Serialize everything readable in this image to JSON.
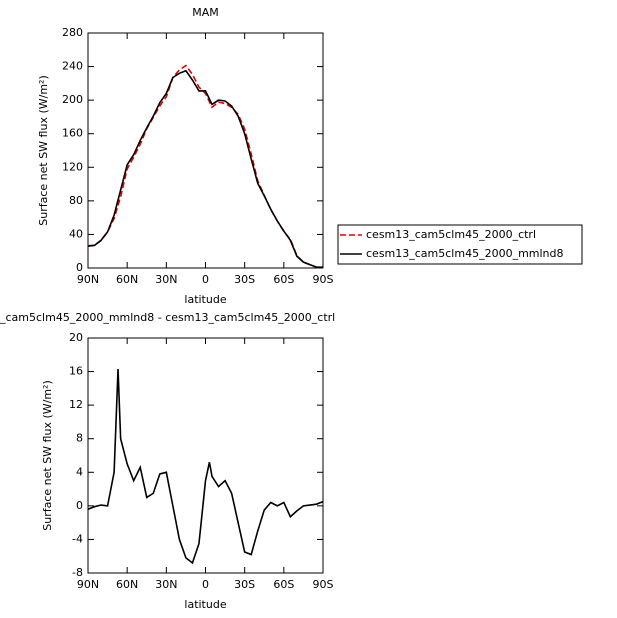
{
  "chart_data": [
    {
      "type": "line",
      "title": "MAM",
      "xlabel": "latitude",
      "ylabel": "Surface net SW flux (W/m²)",
      "x": [
        90,
        85,
        80,
        75,
        70,
        65,
        60,
        55,
        50,
        45,
        40,
        35,
        30,
        25,
        20,
        15,
        10,
        5,
        0,
        -5,
        -10,
        -15,
        -20,
        -25,
        -30,
        -35,
        -40,
        -45,
        -50,
        -55,
        -60,
        -65,
        -70,
        -75,
        -80,
        -85,
        -90
      ],
      "series": [
        {
          "name": "cesm13_cam5clm45_2000_ctrl",
          "color": "#e00000",
          "dashed": true,
          "values": [
            26.4,
            27.1,
            32.9,
            43,
            59,
            85,
            118,
            132,
            147.4,
            166,
            179.5,
            193.2,
            204,
            227,
            236,
            241.2,
            230.8,
            215.5,
            208,
            191.5,
            197.7,
            196,
            191.5,
            183,
            165.5,
            135.8,
            104,
            86.5,
            69.6,
            56,
            43.6,
            34.3,
            14.6,
            7,
            3.9,
            0.8,
            0.5
          ]
        },
        {
          "name": "cesm13_cam5clm45_2000_mmlnd8",
          "color": "#000000",
          "dashed": false,
          "values": [
            26,
            27,
            33,
            43,
            63,
            93,
            123,
            135,
            152,
            167,
            181,
            197,
            208,
            227,
            232,
            235,
            224,
            211,
            211,
            195,
            200,
            199,
            193,
            181,
            160,
            130,
            101,
            86,
            70,
            56,
            44,
            33,
            14,
            7,
            4,
            1,
            1
          ]
        }
      ],
      "xlim": [
        90,
        -90
      ],
      "xticks": [
        {
          "value": 90,
          "label": "90N"
        },
        {
          "value": 60,
          "label": "60N"
        },
        {
          "value": 30,
          "label": "30N"
        },
        0,
        {
          "value": -30,
          "label": "30S"
        },
        {
          "value": -60,
          "label": "60S"
        },
        {
          "value": -90,
          "label": "90S"
        }
      ],
      "ylim": [
        0,
        280
      ],
      "yticks": [
        0,
        40,
        80,
        120,
        160,
        200,
        240,
        280
      ],
      "legend": "right"
    },
    {
      "type": "line",
      "title": "_cam5clm45_2000_mmlnd8 - cesm13_cam5clm45_2000_ctrl",
      "xlabel": "latitude",
      "ylabel": "Surface net SW flux (W/m²)",
      "x": [
        90,
        85,
        80,
        75,
        70,
        67,
        65,
        60,
        55,
        50,
        45,
        40,
        35,
        30,
        25,
        20,
        15,
        10,
        5,
        0,
        -3,
        -5,
        -10,
        -15,
        -20,
        -25,
        -30,
        -35,
        -40,
        -45,
        -50,
        -55,
        -60,
        -65,
        -70,
        -75,
        -80,
        -85,
        -90
      ],
      "series": [
        {
          "color": "#000000",
          "dashed": false,
          "values": [
            -0.4,
            -0.1,
            0.1,
            0,
            4,
            16.3,
            8,
            5,
            3,
            4.6,
            1,
            1.5,
            3.8,
            4,
            0,
            -4,
            -6.2,
            -6.8,
            -4.5,
            3,
            5.2,
            3.5,
            2.3,
            3,
            1.5,
            -2,
            -5.5,
            -5.8,
            -3,
            -0.5,
            0.4,
            0,
            0.4,
            -1.3,
            -0.6,
            0,
            0.1,
            0.2,
            0.5
          ]
        }
      ],
      "xlim": [
        90,
        -90
      ],
      "xticks": [
        {
          "value": 90,
          "label": "90N"
        },
        {
          "value": 60,
          "label": "60N"
        },
        {
          "value": 30,
          "label": "30N"
        },
        0,
        {
          "value": -30,
          "label": "30S"
        },
        {
          "value": -60,
          "label": "60S"
        },
        {
          "value": -90,
          "label": "90S"
        }
      ],
      "ylim": [
        -8,
        20
      ],
      "yticks": [
        -8,
        -4,
        0,
        4,
        8,
        12,
        16,
        20
      ]
    }
  ]
}
